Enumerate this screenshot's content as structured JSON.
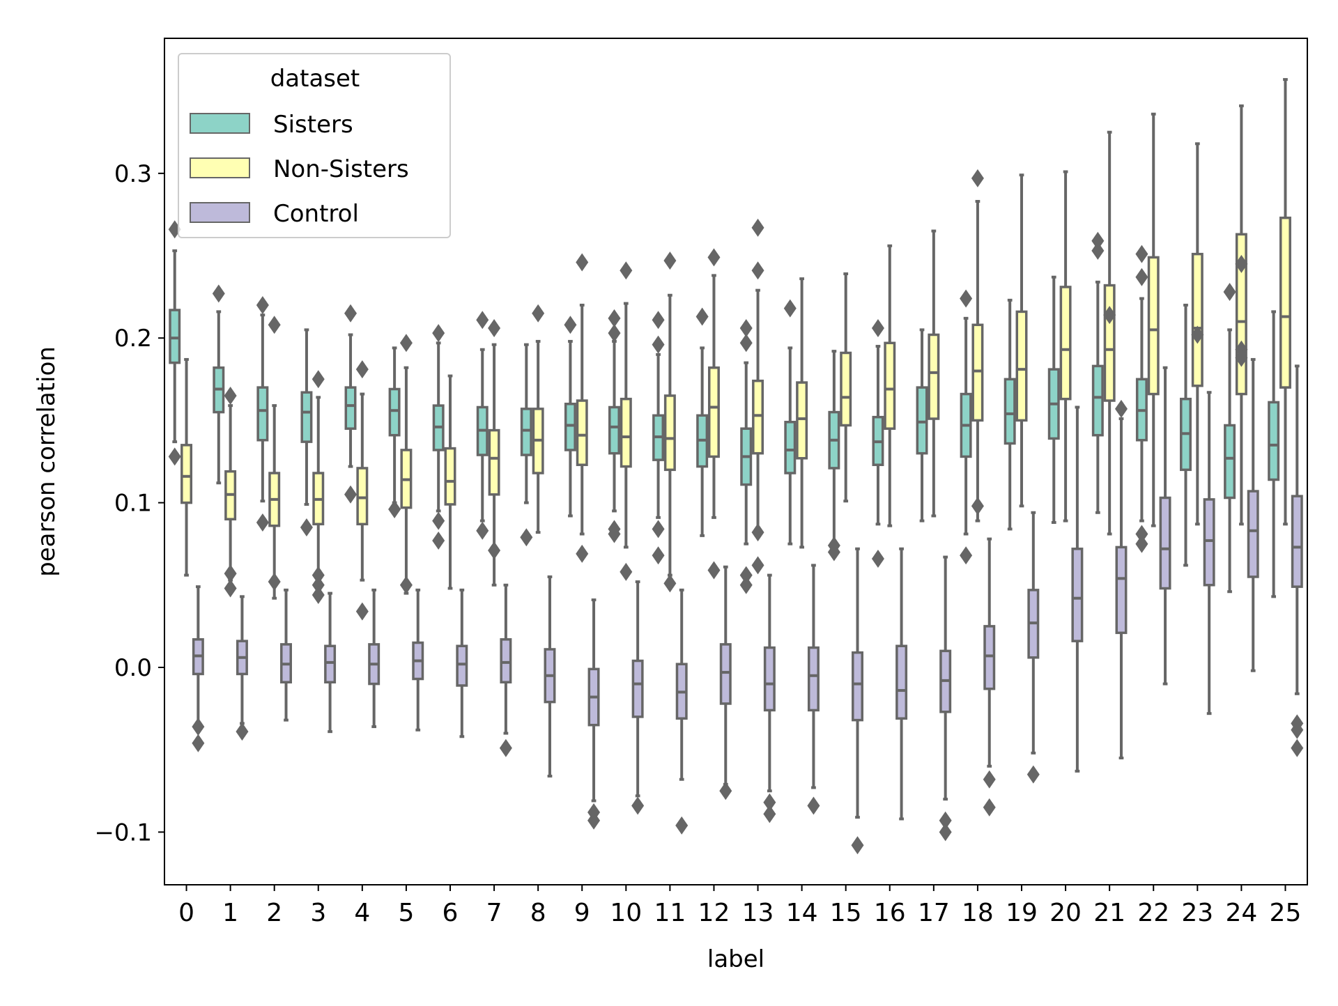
{
  "chart_data": {
    "type": "box",
    "title": "",
    "xlabel": "label",
    "ylabel": "pearson correlation",
    "ylim": [
      -0.132,
      0.382
    ],
    "yticks": [
      -0.1,
      0.0,
      0.1,
      0.2,
      0.3
    ],
    "ytick_labels": [
      "−0.1",
      "0.0",
      "0.1",
      "0.2",
      "0.3"
    ],
    "categories": [
      "0",
      "1",
      "2",
      "3",
      "4",
      "5",
      "6",
      "7",
      "8",
      "9",
      "10",
      "11",
      "12",
      "13",
      "14",
      "15",
      "16",
      "17",
      "18",
      "19",
      "20",
      "21",
      "22",
      "23",
      "24",
      "25"
    ],
    "grid": false,
    "legend": {
      "title": "dataset",
      "placement": "upper-left",
      "entries": [
        "Sisters",
        "Non-Sisters",
        "Control"
      ]
    },
    "colors": {
      "Sisters": "#8dd3c7",
      "Non-Sisters": "#ffffb3",
      "Control": "#bebada",
      "lines": "#666666"
    },
    "series": [
      {
        "name": "Sisters",
        "boxes": [
          {
            "wlo": 0.137,
            "q1": 0.185,
            "med": 0.2,
            "q3": 0.217,
            "whi": 0.253,
            "outliers": [
              0.266,
              0.128
            ]
          },
          {
            "wlo": 0.112,
            "q1": 0.155,
            "med": 0.169,
            "q3": 0.182,
            "whi": 0.216,
            "outliers": [
              0.227
            ]
          },
          {
            "wlo": 0.101,
            "q1": 0.138,
            "med": 0.156,
            "q3": 0.17,
            "whi": 0.214,
            "outliers": [
              0.22,
              0.088
            ]
          },
          {
            "wlo": 0.099,
            "q1": 0.137,
            "med": 0.155,
            "q3": 0.167,
            "whi": 0.205,
            "outliers": [
              0.085
            ]
          },
          {
            "wlo": 0.122,
            "q1": 0.145,
            "med": 0.159,
            "q3": 0.17,
            "whi": 0.202,
            "outliers": [
              0.215,
              0.105
            ]
          },
          {
            "wlo": 0.1,
            "q1": 0.141,
            "med": 0.156,
            "q3": 0.169,
            "whi": 0.194,
            "outliers": [
              0.096
            ]
          },
          {
            "wlo": 0.095,
            "q1": 0.132,
            "med": 0.146,
            "q3": 0.159,
            "whi": 0.197,
            "outliers": [
              0.203,
              0.089,
              0.077
            ]
          },
          {
            "wlo": 0.089,
            "q1": 0.129,
            "med": 0.144,
            "q3": 0.158,
            "whi": 0.193,
            "outliers": [
              0.211,
              0.083
            ]
          },
          {
            "wlo": 0.1,
            "q1": 0.129,
            "med": 0.144,
            "q3": 0.157,
            "whi": 0.196,
            "outliers": [
              0.079
            ]
          },
          {
            "wlo": 0.092,
            "q1": 0.132,
            "med": 0.147,
            "q3": 0.16,
            "whi": 0.198,
            "outliers": [
              0.208
            ]
          },
          {
            "wlo": 0.095,
            "q1": 0.13,
            "med": 0.146,
            "q3": 0.158,
            "whi": 0.198,
            "outliers": [
              0.212,
              0.203,
              0.084,
              0.081
            ]
          },
          {
            "wlo": 0.091,
            "q1": 0.126,
            "med": 0.14,
            "q3": 0.153,
            "whi": 0.19,
            "outliers": [
              0.211,
              0.196,
              0.084,
              0.068
            ]
          },
          {
            "wlo": 0.08,
            "q1": 0.122,
            "med": 0.138,
            "q3": 0.153,
            "whi": 0.194,
            "outliers": [
              0.213
            ]
          },
          {
            "wlo": 0.075,
            "q1": 0.111,
            "med": 0.128,
            "q3": 0.145,
            "whi": 0.185,
            "outliers": [
              0.206,
              0.197,
              0.056,
              0.05
            ]
          },
          {
            "wlo": 0.075,
            "q1": 0.118,
            "med": 0.132,
            "q3": 0.149,
            "whi": 0.194,
            "outliers": [
              0.218
            ]
          },
          {
            "wlo": 0.071,
            "q1": 0.121,
            "med": 0.138,
            "q3": 0.155,
            "whi": 0.192,
            "outliers": [
              0.074,
              0.07
            ]
          },
          {
            "wlo": 0.087,
            "q1": 0.123,
            "med": 0.137,
            "q3": 0.152,
            "whi": 0.195,
            "outliers": [
              0.206,
              0.066
            ]
          },
          {
            "wlo": 0.089,
            "q1": 0.13,
            "med": 0.149,
            "q3": 0.17,
            "whi": 0.205,
            "outliers": []
          },
          {
            "wlo": 0.081,
            "q1": 0.128,
            "med": 0.147,
            "q3": 0.166,
            "whi": 0.212,
            "outliers": [
              0.224,
              0.068
            ]
          },
          {
            "wlo": 0.084,
            "q1": 0.136,
            "med": 0.154,
            "q3": 0.175,
            "whi": 0.223,
            "outliers": []
          },
          {
            "wlo": 0.088,
            "q1": 0.139,
            "med": 0.16,
            "q3": 0.181,
            "whi": 0.237,
            "outliers": []
          },
          {
            "wlo": 0.094,
            "q1": 0.141,
            "med": 0.164,
            "q3": 0.183,
            "whi": 0.234,
            "outliers": [
              0.259,
              0.253
            ]
          },
          {
            "wlo": 0.089,
            "q1": 0.138,
            "med": 0.156,
            "q3": 0.175,
            "whi": 0.224,
            "outliers": [
              0.251,
              0.237,
              0.081,
              0.075
            ]
          },
          {
            "wlo": 0.062,
            "q1": 0.12,
            "med": 0.142,
            "q3": 0.163,
            "whi": 0.22,
            "outliers": []
          },
          {
            "wlo": 0.046,
            "q1": 0.103,
            "med": 0.127,
            "q3": 0.147,
            "whi": 0.205,
            "outliers": [
              0.228
            ]
          },
          {
            "wlo": 0.043,
            "q1": 0.114,
            "med": 0.135,
            "q3": 0.161,
            "whi": 0.216,
            "outliers": []
          }
        ]
      },
      {
        "name": "Non-Sisters",
        "boxes": [
          {
            "wlo": 0.056,
            "q1": 0.1,
            "med": 0.116,
            "q3": 0.135,
            "whi": 0.187,
            "outliers": []
          },
          {
            "wlo": 0.053,
            "q1": 0.09,
            "med": 0.105,
            "q3": 0.119,
            "whi": 0.159,
            "outliers": [
              0.165,
              0.048,
              0.057
            ]
          },
          {
            "wlo": 0.042,
            "q1": 0.086,
            "med": 0.102,
            "q3": 0.118,
            "whi": 0.159,
            "outliers": [
              0.208,
              0.052
            ]
          },
          {
            "wlo": 0.051,
            "q1": 0.087,
            "med": 0.102,
            "q3": 0.118,
            "whi": 0.164,
            "outliers": [
              0.175,
              0.056,
              0.05,
              0.044
            ]
          },
          {
            "wlo": 0.053,
            "q1": 0.087,
            "med": 0.103,
            "q3": 0.121,
            "whi": 0.166,
            "outliers": [
              0.181,
              0.034
            ]
          },
          {
            "wlo": 0.045,
            "q1": 0.097,
            "med": 0.114,
            "q3": 0.132,
            "whi": 0.182,
            "outliers": [
              0.197,
              0.05
            ]
          },
          {
            "wlo": 0.048,
            "q1": 0.099,
            "med": 0.113,
            "q3": 0.133,
            "whi": 0.177,
            "outliers": []
          },
          {
            "wlo": 0.05,
            "q1": 0.105,
            "med": 0.127,
            "q3": 0.144,
            "whi": 0.196,
            "outliers": [
              0.206,
              0.071
            ]
          },
          {
            "wlo": 0.082,
            "q1": 0.118,
            "med": 0.138,
            "q3": 0.157,
            "whi": 0.198,
            "outliers": [
              0.215
            ]
          },
          {
            "wlo": 0.081,
            "q1": 0.123,
            "med": 0.141,
            "q3": 0.162,
            "whi": 0.22,
            "outliers": [
              0.246,
              0.069
            ]
          },
          {
            "wlo": 0.073,
            "q1": 0.122,
            "med": 0.14,
            "q3": 0.163,
            "whi": 0.221,
            "outliers": [
              0.241,
              0.058
            ]
          },
          {
            "wlo": 0.056,
            "q1": 0.12,
            "med": 0.139,
            "q3": 0.165,
            "whi": 0.226,
            "outliers": [
              0.247,
              0.051
            ]
          },
          {
            "wlo": 0.091,
            "q1": 0.128,
            "med": 0.158,
            "q3": 0.182,
            "whi": 0.238,
            "outliers": [
              0.249,
              0.059
            ]
          },
          {
            "wlo": 0.082,
            "q1": 0.13,
            "med": 0.153,
            "q3": 0.174,
            "whi": 0.229,
            "outliers": [
              0.267,
              0.241,
              0.082,
              0.062
            ]
          },
          {
            "wlo": 0.073,
            "q1": 0.127,
            "med": 0.151,
            "q3": 0.173,
            "whi": 0.236,
            "outliers": []
          },
          {
            "wlo": 0.101,
            "q1": 0.147,
            "med": 0.164,
            "q3": 0.191,
            "whi": 0.239,
            "outliers": []
          },
          {
            "wlo": 0.086,
            "q1": 0.145,
            "med": 0.169,
            "q3": 0.197,
            "whi": 0.256,
            "outliers": []
          },
          {
            "wlo": 0.092,
            "q1": 0.151,
            "med": 0.179,
            "q3": 0.202,
            "whi": 0.265,
            "outliers": []
          },
          {
            "wlo": 0.089,
            "q1": 0.15,
            "med": 0.18,
            "q3": 0.208,
            "whi": 0.283,
            "outliers": [
              0.297,
              0.098
            ]
          },
          {
            "wlo": 0.098,
            "q1": 0.15,
            "med": 0.181,
            "q3": 0.216,
            "whi": 0.299,
            "outliers": []
          },
          {
            "wlo": 0.089,
            "q1": 0.163,
            "med": 0.193,
            "q3": 0.231,
            "whi": 0.301,
            "outliers": []
          },
          {
            "wlo": 0.081,
            "q1": 0.162,
            "med": 0.193,
            "q3": 0.232,
            "whi": 0.325,
            "outliers": [
              0.214
            ]
          },
          {
            "wlo": 0.086,
            "q1": 0.166,
            "med": 0.205,
            "q3": 0.249,
            "whi": 0.336,
            "outliers": []
          },
          {
            "wlo": 0.087,
            "q1": 0.171,
            "med": 0.206,
            "q3": 0.251,
            "whi": 0.318,
            "outliers": [
              0.202
            ]
          },
          {
            "wlo": 0.087,
            "q1": 0.166,
            "med": 0.21,
            "q3": 0.263,
            "whi": 0.341,
            "outliers": [
              0.245,
              0.193,
              0.188
            ]
          },
          {
            "wlo": 0.087,
            "q1": 0.17,
            "med": 0.213,
            "q3": 0.273,
            "whi": 0.357,
            "outliers": []
          }
        ]
      },
      {
        "name": "Control",
        "boxes": [
          {
            "wlo": -0.036,
            "q1": -0.004,
            "med": 0.007,
            "q3": 0.017,
            "whi": 0.049,
            "outliers": [
              -0.036,
              -0.046
            ]
          },
          {
            "wlo": -0.034,
            "q1": -0.004,
            "med": 0.006,
            "q3": 0.016,
            "whi": 0.043,
            "outliers": [
              -0.039
            ]
          },
          {
            "wlo": -0.032,
            "q1": -0.009,
            "med": 0.002,
            "q3": 0.014,
            "whi": 0.047,
            "outliers": []
          },
          {
            "wlo": -0.039,
            "q1": -0.009,
            "med": 0.003,
            "q3": 0.013,
            "whi": 0.045,
            "outliers": []
          },
          {
            "wlo": -0.036,
            "q1": -0.01,
            "med": 0.002,
            "q3": 0.014,
            "whi": 0.047,
            "outliers": []
          },
          {
            "wlo": -0.038,
            "q1": -0.007,
            "med": 0.004,
            "q3": 0.015,
            "whi": 0.047,
            "outliers": []
          },
          {
            "wlo": -0.042,
            "q1": -0.011,
            "med": 0.002,
            "q3": 0.013,
            "whi": 0.047,
            "outliers": []
          },
          {
            "wlo": -0.04,
            "q1": -0.009,
            "med": 0.003,
            "q3": 0.017,
            "whi": 0.05,
            "outliers": [
              -0.049
            ]
          },
          {
            "wlo": -0.066,
            "q1": -0.021,
            "med": -0.005,
            "q3": 0.011,
            "whi": 0.055,
            "outliers": []
          },
          {
            "wlo": -0.081,
            "q1": -0.035,
            "med": -0.018,
            "q3": -0.001,
            "whi": 0.041,
            "outliers": [
              -0.088,
              -0.093
            ]
          },
          {
            "wlo": -0.078,
            "q1": -0.03,
            "med": -0.01,
            "q3": 0.004,
            "whi": 0.052,
            "outliers": [
              -0.084
            ]
          },
          {
            "wlo": -0.068,
            "q1": -0.031,
            "med": -0.015,
            "q3": 0.002,
            "whi": 0.047,
            "outliers": [
              -0.096
            ]
          },
          {
            "wlo": -0.071,
            "q1": -0.022,
            "med": -0.003,
            "q3": 0.014,
            "whi": 0.061,
            "outliers": [
              -0.075
            ]
          },
          {
            "wlo": -0.075,
            "q1": -0.026,
            "med": -0.01,
            "q3": 0.012,
            "whi": 0.056,
            "outliers": [
              -0.082,
              -0.089
            ]
          },
          {
            "wlo": -0.073,
            "q1": -0.026,
            "med": -0.005,
            "q3": 0.012,
            "whi": 0.062,
            "outliers": [
              -0.084
            ]
          },
          {
            "wlo": -0.091,
            "q1": -0.032,
            "med": -0.01,
            "q3": 0.009,
            "whi": 0.072,
            "outliers": [
              -0.108
            ]
          },
          {
            "wlo": -0.092,
            "q1": -0.031,
            "med": -0.014,
            "q3": 0.013,
            "whi": 0.072,
            "outliers": []
          },
          {
            "wlo": -0.08,
            "q1": -0.027,
            "med": -0.008,
            "q3": 0.01,
            "whi": 0.067,
            "outliers": [
              -0.093,
              -0.1
            ]
          },
          {
            "wlo": -0.06,
            "q1": -0.013,
            "med": 0.007,
            "q3": 0.025,
            "whi": 0.078,
            "outliers": [
              -0.068,
              -0.085
            ]
          },
          {
            "wlo": -0.052,
            "q1": 0.006,
            "med": 0.027,
            "q3": 0.047,
            "whi": 0.094,
            "outliers": [
              -0.065
            ]
          },
          {
            "wlo": -0.063,
            "q1": 0.016,
            "med": 0.042,
            "q3": 0.072,
            "whi": 0.158,
            "outliers": []
          },
          {
            "wlo": -0.055,
            "q1": 0.021,
            "med": 0.054,
            "q3": 0.073,
            "whi": 0.151,
            "outliers": [
              0.157
            ]
          },
          {
            "wlo": -0.01,
            "q1": 0.048,
            "med": 0.072,
            "q3": 0.103,
            "whi": 0.182,
            "outliers": []
          },
          {
            "wlo": -0.028,
            "q1": 0.05,
            "med": 0.077,
            "q3": 0.102,
            "whi": 0.167,
            "outliers": []
          },
          {
            "wlo": -0.002,
            "q1": 0.055,
            "med": 0.083,
            "q3": 0.107,
            "whi": 0.187,
            "outliers": []
          },
          {
            "wlo": -0.016,
            "q1": 0.049,
            "med": 0.073,
            "q3": 0.104,
            "whi": 0.183,
            "outliers": [
              -0.034,
              -0.038,
              -0.049
            ]
          }
        ]
      }
    ]
  }
}
